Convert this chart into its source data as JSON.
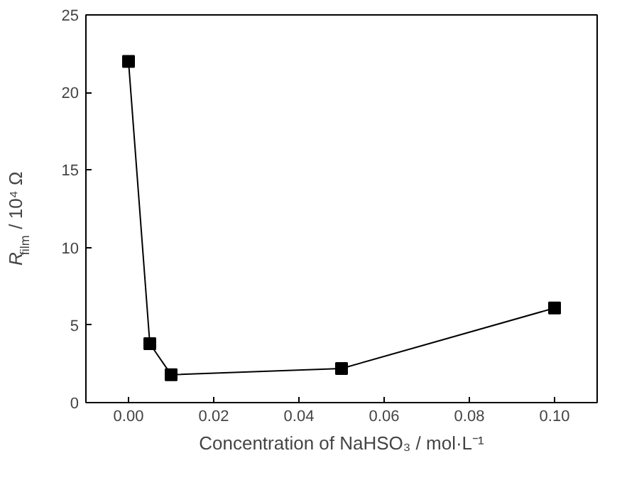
{
  "chart_data": {
    "type": "line",
    "xlabel": "Concentration of NaHSO₃ / mol·L⁻¹",
    "ylabel": "R$_{film}$ / 10⁴ Ω",
    "x": [
      0,
      0.005,
      0.01,
      0.05,
      0.1
    ],
    "series": [
      {
        "color": "#000000",
        "values": [
          22,
          3.8,
          1.8,
          2.2,
          6.1
        ]
      }
    ],
    "xlim": [
      -0.01,
      0.11
    ],
    "xticks": [
      {
        "value": 0,
        "label": "0.00"
      },
      {
        "value": 0.02,
        "label": "0.02"
      },
      {
        "value": 0.04,
        "label": "0.04"
      },
      {
        "value": 0.06,
        "label": "0.06"
      },
      {
        "value": 0.08,
        "label": "0.08"
      },
      {
        "value": 0.1,
        "label": "0.10"
      }
    ],
    "ylim": [
      0,
      25
    ],
    "yticks": [
      0,
      5,
      10,
      15,
      20,
      25
    ],
    "grid": false,
    "marker": "square",
    "line_style": "solid"
  }
}
